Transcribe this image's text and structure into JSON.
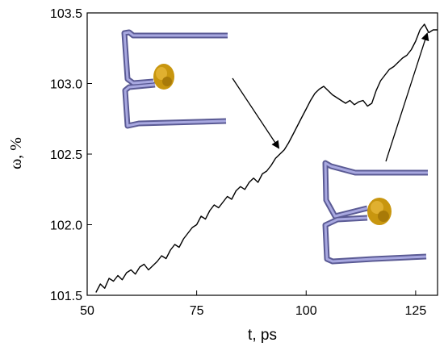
{
  "chart_data": {
    "type": "line",
    "title": "",
    "xlabel": "t, ps",
    "ylabel": "ω, %",
    "xlim": [
      50,
      130
    ],
    "ylim": [
      101.5,
      103.5
    ],
    "x_ticks": [
      50,
      75,
      100,
      125
    ],
    "y_ticks": [
      "101.5",
      "102.0",
      "102.5",
      "103.0",
      "103.5"
    ],
    "grid": false,
    "legend": "none",
    "line_color": "#000000",
    "series": [
      {
        "x": [
          52,
          53,
          54,
          55,
          56,
          57,
          58,
          59,
          60,
          61,
          62,
          63,
          64,
          65,
          66,
          67,
          68,
          69,
          70,
          71,
          72,
          73,
          74,
          75,
          76,
          77,
          78,
          79,
          80,
          81,
          82,
          83,
          84,
          85,
          86,
          87,
          88,
          89,
          90,
          91,
          92,
          93,
          94,
          95,
          96,
          97,
          98,
          99,
          100,
          101,
          102,
          103,
          104,
          105,
          106,
          107,
          108,
          109,
          110,
          111,
          112,
          113,
          114,
          115,
          116,
          117,
          118,
          119,
          120,
          121,
          122,
          123,
          124,
          125,
          126,
          127,
          128,
          129,
          130
        ],
        "y": [
          101.52,
          101.58,
          101.55,
          101.62,
          101.6,
          101.64,
          101.61,
          101.66,
          101.68,
          101.65,
          101.7,
          101.72,
          101.68,
          101.71,
          101.74,
          101.78,
          101.76,
          101.82,
          101.86,
          101.84,
          101.9,
          101.94,
          101.98,
          102.0,
          102.06,
          102.04,
          102.1,
          102.14,
          102.12,
          102.16,
          102.2,
          102.18,
          102.24,
          102.27,
          102.25,
          102.3,
          102.33,
          102.3,
          102.36,
          102.38,
          102.42,
          102.47,
          102.5,
          102.53,
          102.58,
          102.64,
          102.7,
          102.76,
          102.82,
          102.88,
          102.93,
          102.96,
          102.98,
          102.95,
          102.92,
          102.9,
          102.88,
          102.86,
          102.88,
          102.85,
          102.87,
          102.88,
          102.84,
          102.86,
          102.95,
          103.02,
          103.06,
          103.1,
          103.12,
          103.15,
          103.18,
          103.2,
          103.24,
          103.3,
          103.38,
          103.42,
          103.36,
          103.38,
          103.38
        ]
      }
    ]
  }
}
